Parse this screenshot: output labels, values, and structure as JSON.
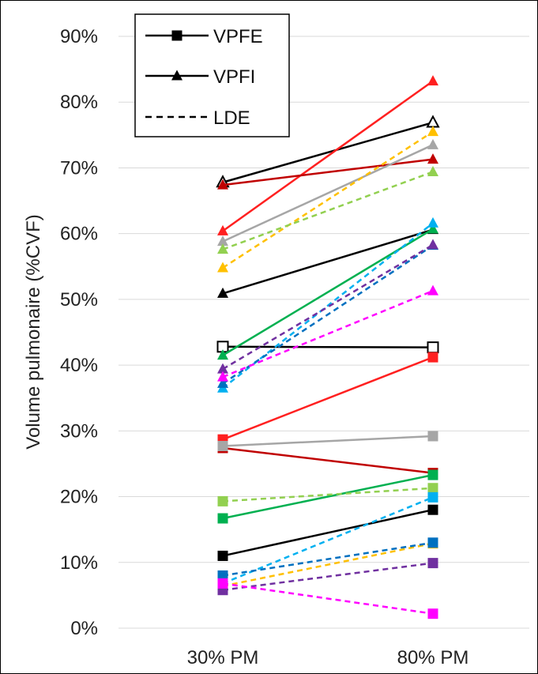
{
  "chart_data": {
    "type": "line",
    "title": "",
    "xlabel": "",
    "ylabel": "Volume pulmonaire (%CVF)",
    "categories": [
      "30% PM",
      "80% PM"
    ],
    "ylim": [
      0,
      90
    ],
    "yticks": [
      "0%",
      "10%",
      "20%",
      "30%",
      "40%",
      "50%",
      "60%",
      "70%",
      "80%",
      "90%"
    ],
    "ytick_values": [
      0,
      10,
      20,
      30,
      40,
      50,
      60,
      70,
      80,
      90
    ],
    "grid": "horizontal",
    "legend": {
      "position": "top-left",
      "entries": [
        {
          "label": "VPFE",
          "style": "solid",
          "marker": "square"
        },
        {
          "label": "VPFI",
          "style": "solid",
          "marker": "triangle"
        },
        {
          "label": "LDE",
          "style": "dashed",
          "marker": "none"
        }
      ]
    },
    "series": [
      {
        "kind": "VPFI",
        "dash": false,
        "marker": "triangle-open",
        "color": "#000000",
        "values": [
          67.8,
          76.9
        ]
      },
      {
        "kind": "VPFE",
        "dash": false,
        "marker": "square-open",
        "color": "#000000",
        "values": [
          42.8,
          42.7
        ]
      },
      {
        "kind": "VPFE",
        "dash": false,
        "marker": "square",
        "color": "#000000",
        "values": [
          11.0,
          18.0
        ]
      },
      {
        "kind": "VPFI",
        "dash": false,
        "marker": "triangle",
        "color": "#000000",
        "values": [
          50.9,
          60.6
        ]
      },
      {
        "kind": "VPFI",
        "dash": false,
        "marker": "triangle",
        "color": "#ff2020",
        "values": [
          60.4,
          83.2
        ]
      },
      {
        "kind": "VPFE",
        "dash": false,
        "marker": "square",
        "color": "#ff2020",
        "values": [
          28.7,
          41.2
        ]
      },
      {
        "kind": "VPFI",
        "dash": false,
        "marker": "triangle",
        "color": "#c00000",
        "values": [
          67.4,
          71.3
        ]
      },
      {
        "kind": "VPFE",
        "dash": false,
        "marker": "square",
        "color": "#c00000",
        "values": [
          27.4,
          23.6
        ]
      },
      {
        "kind": "VPFI",
        "dash": false,
        "marker": "triangle",
        "color": "#a6a6a6",
        "values": [
          58.8,
          73.5
        ]
      },
      {
        "kind": "VPFE",
        "dash": false,
        "marker": "square",
        "color": "#a6a6a6",
        "values": [
          27.7,
          29.2
        ]
      },
      {
        "kind": "VPFI",
        "dash": false,
        "marker": "triangle",
        "color": "#00b050",
        "values": [
          41.5,
          60.7
        ]
      },
      {
        "kind": "VPFE",
        "dash": false,
        "marker": "square",
        "color": "#00b050",
        "values": [
          16.7,
          23.3
        ]
      },
      {
        "kind": "LDE",
        "dash": true,
        "marker": "triangle",
        "color": "#ffc000",
        "values": [
          54.8,
          75.5
        ]
      },
      {
        "kind": "LDE",
        "dash": true,
        "marker": "square",
        "color": "#ffc000",
        "values": [
          6.4,
          12.9
        ]
      },
      {
        "kind": "LDE",
        "dash": true,
        "marker": "triangle",
        "color": "#92d050",
        "values": [
          57.6,
          69.4
        ]
      },
      {
        "kind": "LDE",
        "dash": true,
        "marker": "square",
        "color": "#92d050",
        "values": [
          19.3,
          21.3
        ]
      },
      {
        "kind": "LDE",
        "dash": true,
        "marker": "triangle",
        "color": "#00b0f0",
        "values": [
          36.5,
          61.6
        ]
      },
      {
        "kind": "LDE",
        "dash": true,
        "marker": "square",
        "color": "#00b0f0",
        "values": [
          6.8,
          19.9
        ]
      },
      {
        "kind": "LDE",
        "dash": true,
        "marker": "triangle",
        "color": "#0070c0",
        "values": [
          37.2,
          58.2
        ]
      },
      {
        "kind": "LDE",
        "dash": true,
        "marker": "square",
        "color": "#0070c0",
        "values": [
          8.0,
          13.0
        ]
      },
      {
        "kind": "LDE",
        "dash": true,
        "marker": "triangle",
        "color": "#7030a0",
        "values": [
          39.4,
          58.3
        ]
      },
      {
        "kind": "LDE",
        "dash": true,
        "marker": "square",
        "color": "#7030a0",
        "values": [
          5.8,
          9.9
        ]
      },
      {
        "kind": "LDE",
        "dash": true,
        "marker": "triangle",
        "color": "#ff00ff",
        "values": [
          38.2,
          51.3
        ]
      },
      {
        "kind": "LDE",
        "dash": true,
        "marker": "square",
        "color": "#ff00ff",
        "values": [
          6.8,
          2.2
        ]
      }
    ]
  }
}
